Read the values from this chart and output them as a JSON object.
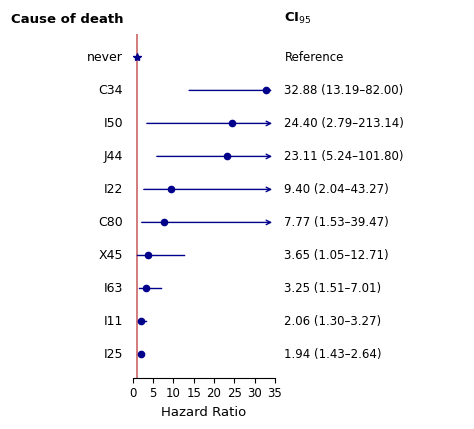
{
  "title_left": "Cause of death",
  "title_right": "CI$_{95}$",
  "xlabel": "Hazard Ratio",
  "categories": [
    "never",
    "C34",
    "I50",
    "J44",
    "I22",
    "C80",
    "X45",
    "I63",
    "I11",
    "I25"
  ],
  "hr": [
    1.0,
    32.88,
    24.4,
    23.11,
    9.4,
    7.77,
    3.65,
    3.25,
    2.06,
    1.94
  ],
  "ci_low": [
    1.0,
    13.19,
    2.79,
    5.24,
    2.04,
    1.53,
    1.05,
    1.51,
    1.3,
    1.43
  ],
  "ci_high": [
    1.0,
    82.0,
    213.14,
    101.8,
    43.27,
    39.47,
    12.71,
    7.01,
    3.27,
    2.64
  ],
  "ci_labels": [
    "Reference",
    "32.88 (13.19–82.00)",
    "24.40 (2.79–213.14)",
    "23.11 (5.24–101.80)",
    "9.40 (2.04–43.27)",
    "7.77 (1.53–39.47)",
    "3.65 (1.05–12.71)",
    "3.25 (1.51–7.01)",
    "2.06 (1.30–3.27)",
    "1.94 (1.43–2.64)"
  ],
  "xmax": 35,
  "xmin": 0,
  "xticks": [
    0,
    5,
    10,
    15,
    20,
    25,
    30,
    35
  ],
  "ref_line_x": 1.0,
  "dot_color": "#00008B",
  "line_color": "#00008B",
  "ref_line_color": "#cc6666",
  "background_color": "#ffffff",
  "clipped_indices": [
    1,
    2,
    3,
    4,
    5
  ]
}
